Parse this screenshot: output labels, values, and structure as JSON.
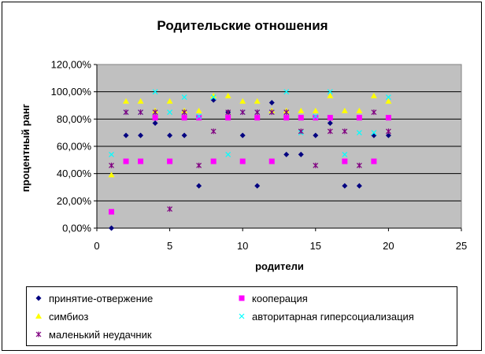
{
  "chart_data": {
    "type": "scatter",
    "title": "Родительские отношения",
    "xlabel": "родители",
    "ylabel": "процентный ранг",
    "xlim": [
      0,
      25
    ],
    "ylim": [
      0,
      120
    ],
    "x_ticks": [
      "0",
      "5",
      "10",
      "15",
      "20",
      "25"
    ],
    "y_ticks": [
      "0,00%",
      "20,00%",
      "40,00%",
      "60,00%",
      "80,00%",
      "100,00%",
      "120,00%"
    ],
    "grid": "horizontal",
    "plot_background": "#c0c0c0",
    "legend_position": "bottom",
    "series": [
      {
        "name": "принятие-отвержение",
        "marker": "diamond",
        "color": "#000080",
        "x": [
          1,
          2,
          3,
          4,
          5,
          6,
          7,
          8,
          9,
          10,
          11,
          12,
          13,
          14,
          15,
          16,
          17,
          18,
          19,
          20
        ],
        "y": [
          0,
          68,
          68,
          77,
          68,
          68,
          31,
          94,
          85,
          68,
          31,
          92,
          54,
          54,
          68,
          77,
          31,
          31,
          68,
          68
        ]
      },
      {
        "name": "кооперация",
        "marker": "square",
        "color": "#ff00ff",
        "x": [
          1,
          2,
          3,
          4,
          5,
          6,
          7,
          8,
          9,
          10,
          11,
          12,
          13,
          14,
          15,
          16,
          17,
          18,
          19,
          20
        ],
        "y": [
          12,
          49,
          49,
          81,
          49,
          81,
          81,
          49,
          81,
          49,
          81,
          49,
          81,
          81,
          81,
          81,
          49,
          81,
          49,
          81
        ]
      },
      {
        "name": "симбиоз",
        "marker": "triangle",
        "color": "#ffff00",
        "x": [
          1,
          2,
          3,
          4,
          5,
          6,
          7,
          8,
          9,
          10,
          11,
          12,
          13,
          14,
          15,
          16,
          17,
          18,
          19,
          20
        ],
        "y": [
          39,
          93,
          93,
          86,
          93,
          86,
          86,
          97,
          97,
          93,
          93,
          86,
          86,
          86,
          86,
          97,
          86,
          86,
          97,
          93
        ]
      },
      {
        "name": "авторитарная гиперсоциализация",
        "marker": "x",
        "color": "#00ffff",
        "x": [
          1,
          2,
          3,
          4,
          5,
          6,
          7,
          8,
          9,
          10,
          11,
          12,
          13,
          14,
          15,
          16,
          17,
          18,
          19,
          20
        ],
        "y": [
          54,
          85,
          85,
          100,
          85,
          96,
          82,
          96,
          54,
          85,
          85,
          85,
          100,
          70,
          82,
          100,
          54,
          70,
          70,
          96
        ]
      },
      {
        "name": "маленький неудачник",
        "marker": "star",
        "color": "#800080",
        "x": [
          1,
          2,
          3,
          4,
          5,
          6,
          7,
          8,
          9,
          10,
          11,
          12,
          13,
          14,
          15,
          16,
          17,
          18,
          19,
          20
        ],
        "y": [
          46,
          85,
          85,
          85,
          14,
          85,
          46,
          71,
          85,
          85,
          85,
          85,
          85,
          71,
          46,
          71,
          71,
          46,
          85,
          71
        ]
      }
    ]
  }
}
